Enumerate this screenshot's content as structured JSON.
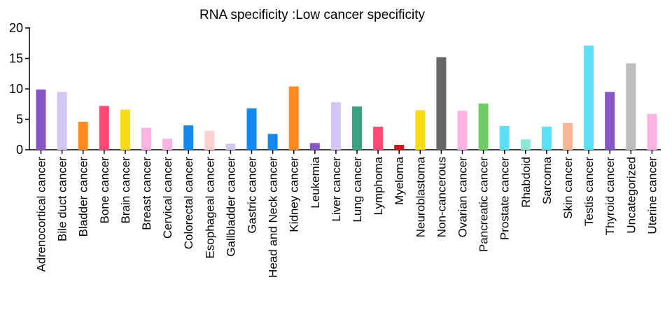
{
  "chart_data": {
    "type": "bar",
    "title": "RNA specificity :Low cancer specificity",
    "xlabel": "",
    "ylabel": "",
    "ylim": [
      0,
      20
    ],
    "yticks": [
      0,
      5,
      10,
      15,
      20
    ],
    "grid": false,
    "legend": "none",
    "categories": [
      "Adrenocortical cancer",
      "Bile duct cancer",
      "Bladder cancer",
      "Bone cancer",
      "Brain cancer",
      "Breast cancer",
      "Cervical cancer",
      "Colorectal cancer",
      "Esophageal cancer",
      "Gallbladder cancer",
      "Gastric cancer",
      "Head and Neck cancer",
      "Kidney cancer",
      "Leukemia",
      "Liver cancer",
      "Lung cancer",
      "Lymphoma",
      "Myeloma",
      "Neuroblastoma",
      "Non-cancerous",
      "Ovarian cancer",
      "Pancreatic cancer",
      "Prostate cancer",
      "Rhabdoid",
      "Sarcoma",
      "Skin cancer",
      "Testis cancer",
      "Thyroid cancer",
      "Uncategorized",
      "Uterine cancer"
    ],
    "values": [
      9.9,
      9.5,
      4.6,
      7.2,
      6.6,
      3.6,
      1.8,
      4.0,
      3.1,
      1.0,
      6.8,
      2.6,
      10.4,
      1.1,
      7.8,
      7.1,
      3.8,
      0.8,
      6.5,
      15.2,
      6.4,
      7.6,
      3.9,
      1.7,
      3.8,
      4.4,
      17.1,
      9.5,
      14.2,
      5.9
    ],
    "colors": [
      "#8755c4",
      "#d4c6f6",
      "#ff8a21",
      "#ff4a73",
      "#f6db16",
      "#ffb3e3",
      "#ffb3e3",
      "#1189ee",
      "#ffd0d0",
      "#d4c6f6",
      "#1189ee",
      "#1189ee",
      "#ff8a21",
      "#8755c4",
      "#d4c6f6",
      "#3aa37e",
      "#ff4a73",
      "#d7101b",
      "#f6db16",
      "#666666",
      "#ffb3e3",
      "#6fcc66",
      "#5ce0f5",
      "#8ce8d2",
      "#5ce0f5",
      "#f9b796",
      "#5ce0f5",
      "#8755c4",
      "#bdbdbd",
      "#ffb3e3"
    ]
  }
}
